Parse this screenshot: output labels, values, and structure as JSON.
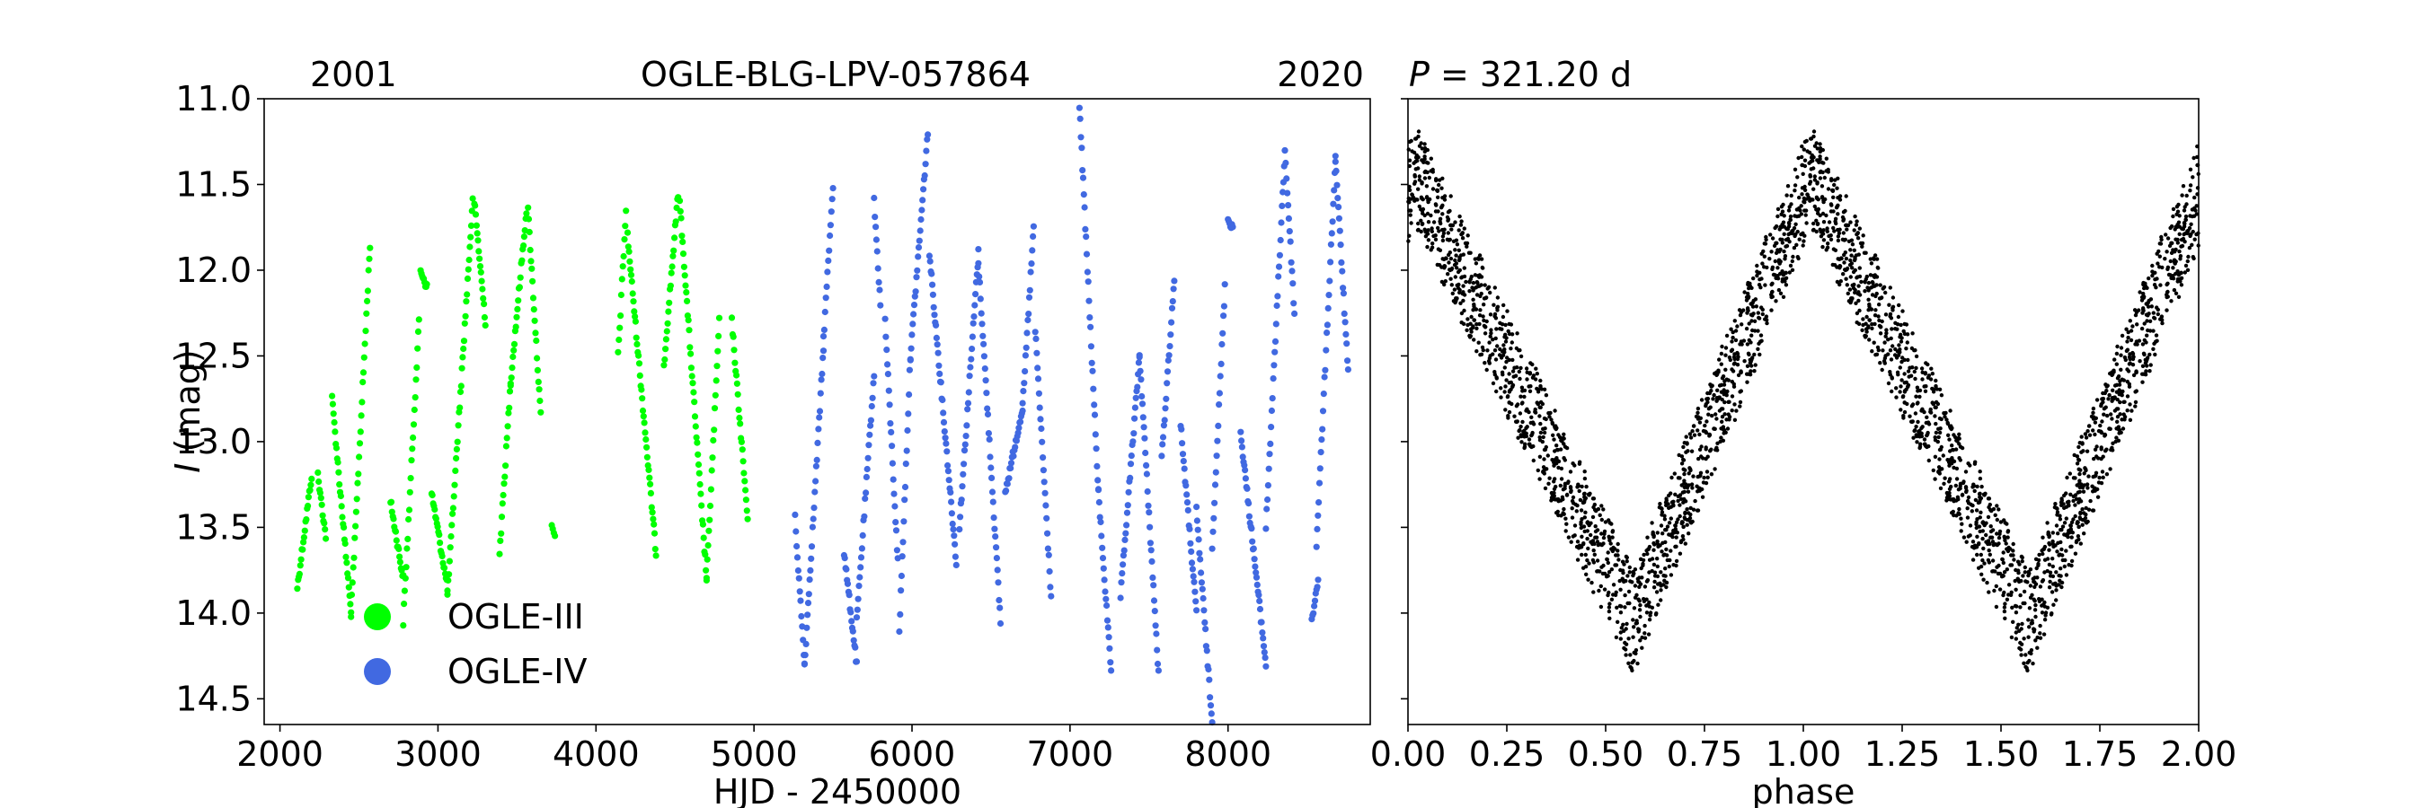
{
  "chart_data": [
    {
      "type": "scatter",
      "title": "OGLE-BLG-LPV-057864",
      "year_start_label": "2001",
      "year_end_label": "2020",
      "xlabel": "HJD - 2450000",
      "ylabel_symbol": "I",
      "ylabel_unit": " (mag)",
      "xlim": [
        1900,
        8900
      ],
      "ylim": [
        14.65,
        11.0
      ],
      "y_inverted": true,
      "x_ticks": [
        2000,
        3000,
        4000,
        5000,
        6000,
        7000,
        8000
      ],
      "x_tick_labels": [
        "2000",
        "3000",
        "4000",
        "5000",
        "6000",
        "7000",
        "8000"
      ],
      "y_ticks": [
        11.0,
        11.5,
        12.0,
        12.5,
        13.0,
        13.5,
        14.0,
        14.5
      ],
      "y_tick_labels": [
        "11.0",
        "11.5",
        "12.0",
        "12.5",
        "13.0",
        "13.5",
        "14.0",
        "14.5"
      ],
      "grid": false,
      "legend": "lower-left",
      "period_days": 321.2,
      "mean_mag": 12.85,
      "series": [
        {
          "name": "OGLE-III",
          "color": "#00ff00",
          "segments": [
            {
              "t0": 2110,
              "t1": 2200,
              "y0": 13.85,
              "y1": 13.2
            },
            {
              "t0": 2240,
              "t1": 2290,
              "y0": 13.2,
              "y1": 13.55
            },
            {
              "t0": 2330,
              "t1": 2450,
              "y0": 12.75,
              "y1": 14.0
            },
            {
              "t0": 2450,
              "t1": 2570,
              "y0": 14.0,
              "y1": 11.85
            },
            {
              "t0": 2700,
              "t1": 2780,
              "y0": 13.35,
              "y1": 13.8
            },
            {
              "t0": 2780,
              "t1": 2880,
              "y0": 14.05,
              "y1": 12.3
            },
            {
              "t0": 2890,
              "t1": 2930,
              "y0": 12.0,
              "y1": 12.1
            },
            {
              "t0": 2960,
              "t1": 3060,
              "y0": 13.3,
              "y1": 13.85
            },
            {
              "t0": 3060,
              "t1": 3220,
              "y0": 13.9,
              "y1": 11.6
            },
            {
              "t0": 3230,
              "t1": 3300,
              "y0": 11.6,
              "y1": 12.3
            },
            {
              "t0": 3390,
              "t1": 3460,
              "y0": 13.65,
              "y1": 12.65
            },
            {
              "t0": 3460,
              "t1": 3560,
              "y0": 12.65,
              "y1": 11.65
            },
            {
              "t0": 3570,
              "t1": 3650,
              "y0": 11.65,
              "y1": 12.85
            },
            {
              "t0": 3720,
              "t1": 3740,
              "y0": 13.5,
              "y1": 13.55
            },
            {
              "t0": 4140,
              "t1": 4190,
              "y0": 12.5,
              "y1": 11.65
            },
            {
              "t0": 4200,
              "t1": 4380,
              "y0": 11.8,
              "y1": 13.65
            },
            {
              "t0": 4430,
              "t1": 4520,
              "y0": 12.55,
              "y1": 11.55
            },
            {
              "t0": 4530,
              "t1": 4700,
              "y0": 11.6,
              "y1": 13.8
            },
            {
              "t0": 4700,
              "t1": 4780,
              "y0": 13.8,
              "y1": 12.3
            },
            {
              "t0": 4860,
              "t1": 4960,
              "y0": 12.3,
              "y1": 13.45
            }
          ]
        },
        {
          "name": "OGLE-IV",
          "color": "#4169e1",
          "segments": [
            {
              "t0": 5260,
              "t1": 5320,
              "y0": 13.45,
              "y1": 14.3
            },
            {
              "t0": 5320,
              "t1": 5440,
              "y0": 14.3,
              "y1": 12.45
            },
            {
              "t0": 5440,
              "t1": 5500,
              "y0": 12.4,
              "y1": 11.5
            },
            {
              "t0": 5570,
              "t1": 5650,
              "y0": 13.65,
              "y1": 14.3
            },
            {
              "t0": 5650,
              "t1": 5760,
              "y0": 14.05,
              "y1": 12.6
            },
            {
              "t0": 5760,
              "t1": 5800,
              "y0": 11.6,
              "y1": 12.2
            },
            {
              "t0": 5830,
              "t1": 5910,
              "y0": 12.3,
              "y1": 13.7
            },
            {
              "t0": 5920,
              "t1": 5990,
              "y0": 14.1,
              "y1": 12.5
            },
            {
              "t0": 5990,
              "t1": 6100,
              "y0": 12.5,
              "y1": 11.2
            },
            {
              "t0": 6110,
              "t1": 6280,
              "y0": 11.9,
              "y1": 13.7
            },
            {
              "t0": 6300,
              "t1": 6420,
              "y0": 13.5,
              "y1": 11.9
            },
            {
              "t0": 6420,
              "t1": 6560,
              "y0": 11.95,
              "y1": 14.05
            },
            {
              "t0": 6590,
              "t1": 6700,
              "y0": 13.3,
              "y1": 12.8
            },
            {
              "t0": 6700,
              "t1": 6770,
              "y0": 12.8,
              "y1": 11.75
            },
            {
              "t0": 6780,
              "t1": 6880,
              "y0": 12.35,
              "y1": 13.9
            },
            {
              "t0": 7060,
              "t1": 7180,
              "y0": 11.05,
              "y1": 13.3
            },
            {
              "t0": 7180,
              "t1": 7260,
              "y0": 13.3,
              "y1": 14.35
            },
            {
              "t0": 7320,
              "t1": 7440,
              "y0": 13.9,
              "y1": 12.5
            },
            {
              "t0": 7440,
              "t1": 7560,
              "y0": 12.5,
              "y1": 14.35
            },
            {
              "t0": 7580,
              "t1": 7660,
              "y0": 13.1,
              "y1": 12.05
            },
            {
              "t0": 7700,
              "t1": 7800,
              "y0": 12.9,
              "y1": 14.0
            },
            {
              "t0": 7800,
              "t1": 7900,
              "y0": 13.4,
              "y1": 14.65
            },
            {
              "t0": 7900,
              "t1": 7980,
              "y0": 13.6,
              "y1": 12.1
            },
            {
              "t0": 8000,
              "t1": 8030,
              "y0": 11.7,
              "y1": 11.75
            },
            {
              "t0": 8080,
              "t1": 8240,
              "y0": 12.95,
              "y1": 14.3
            },
            {
              "t0": 8240,
              "t1": 8360,
              "y0": 13.5,
              "y1": 11.3
            },
            {
              "t0": 8360,
              "t1": 8420,
              "y0": 11.3,
              "y1": 12.25
            },
            {
              "t0": 8530,
              "t1": 8570,
              "y0": 14.05,
              "y1": 13.8
            },
            {
              "t0": 8560,
              "t1": 8680,
              "y0": 13.6,
              "y1": 11.35
            },
            {
              "t0": 8680,
              "t1": 8760,
              "y0": 11.35,
              "y1": 12.6
            }
          ]
        }
      ]
    },
    {
      "type": "scatter",
      "title": "P = 321.20 d",
      "title_symbol": "P",
      "title_rest": " = 321.20 d",
      "xlabel": "phase",
      "xlim": [
        0.0,
        2.0
      ],
      "ylim": [
        14.65,
        11.0
      ],
      "y_inverted": true,
      "shared_y_with_left_panel": true,
      "x_ticks": [
        0.0,
        0.25,
        0.5,
        0.75,
        1.0,
        1.25,
        1.5,
        1.75,
        2.0
      ],
      "x_tick_labels": [
        "0.00",
        "0.25",
        "0.50",
        "0.75",
        "1.00",
        "1.25",
        "1.50",
        "1.75",
        "2.00"
      ],
      "grid": false,
      "point_color": "#000000",
      "folded_curve": {
        "max_brightness_phase": 1.02,
        "min_brightness_phase": 0.57,
        "mag_at_max": 11.45,
        "mag_at_min": 14.05,
        "scatter_mag": 0.5
      }
    }
  ]
}
